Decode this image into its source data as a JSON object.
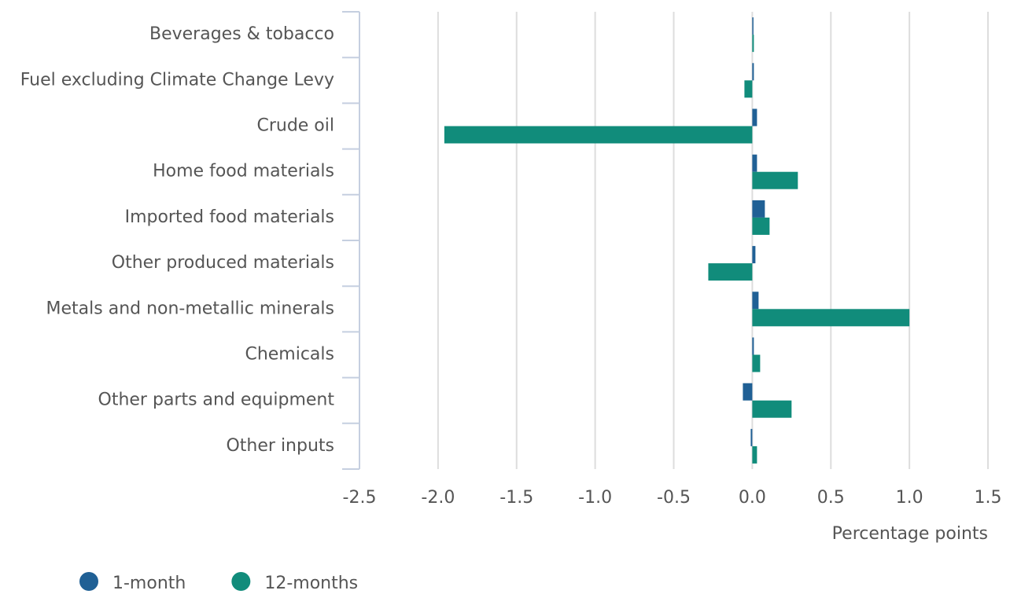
{
  "chart_data": {
    "type": "bar",
    "orientation": "horizontal",
    "categories": [
      "Beverages & tobacco",
      "Fuel excluding Climate Change Levy",
      "Crude oil",
      "Home food materials",
      "Imported food materials",
      "Other produced materials",
      "Metals and non-metallic minerals",
      "Chemicals",
      "Other parts and equipment",
      "Other inputs"
    ],
    "series": [
      {
        "name": "1-month",
        "color": "#206095",
        "values": [
          0,
          0.01,
          0.03,
          0.03,
          0.08,
          0.02,
          0.04,
          0.01,
          -0.06,
          -0.01
        ]
      },
      {
        "name": "12-months",
        "color": "#118c7b",
        "values": [
          0.01,
          -0.05,
          -1.96,
          0.29,
          0.11,
          -0.28,
          1.0,
          0.05,
          0.25,
          0.03
        ]
      }
    ],
    "x_label": "Percentage points",
    "xlim": [
      -2.5,
      1.5
    ],
    "xticks": [
      -2.5,
      {
        "value": -2,
        "label": "-2.0"
      },
      -1.5,
      {
        "value": -1,
        "label": "-1.0"
      },
      -0.5,
      {
        "value": 0,
        "label": "0.0"
      },
      0.5,
      {
        "value": 1,
        "label": "1.0"
      },
      1.5
    ],
    "grid": true,
    "legend": "bottom-left"
  }
}
